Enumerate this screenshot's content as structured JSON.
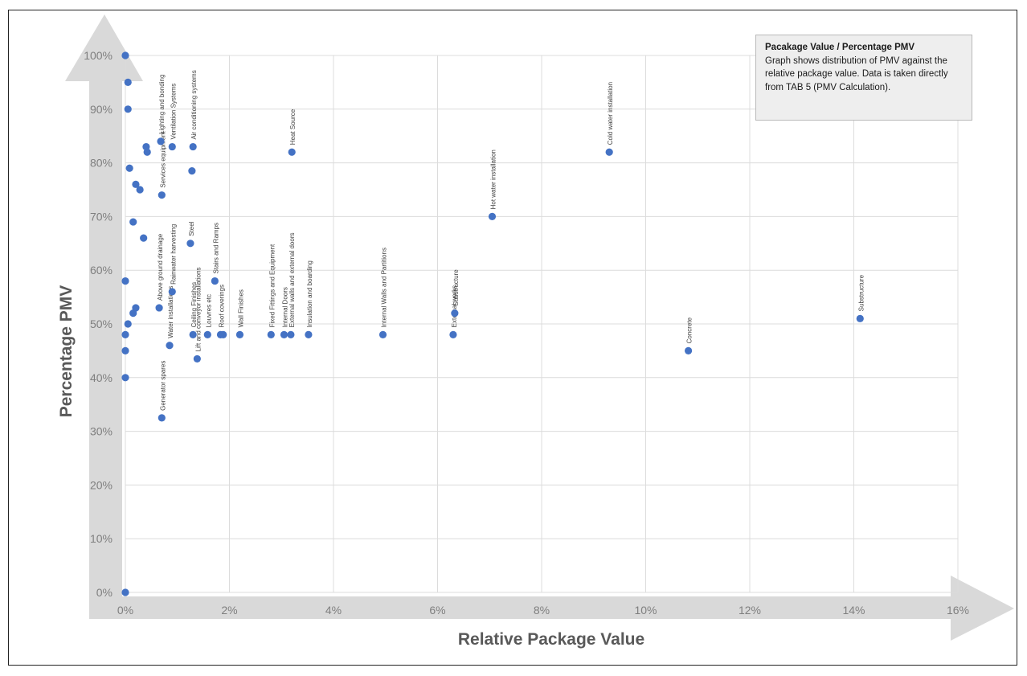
{
  "chart_data": {
    "type": "scatter",
    "xlabel": "Relative Package Value",
    "ylabel": "Percentage PMV",
    "x_unit": "%",
    "y_unit": "%",
    "xlim": [
      0,
      16
    ],
    "ylim": [
      0,
      100
    ],
    "x_ticks": [
      "0%",
      "2%",
      "4%",
      "6%",
      "8%",
      "10%",
      "12%",
      "14%",
      "16%"
    ],
    "y_ticks": [
      "0%",
      "10%",
      "20%",
      "30%",
      "40%",
      "50%",
      "60%",
      "70%",
      "80%",
      "90%",
      "100%"
    ],
    "grid": true,
    "marker_color": "#4472c4",
    "axis_arrow_color": "#d9d9d9",
    "note": {
      "title": "Pacakage Value / Percentage PMV",
      "body": "Graph shows distribution of PMV against the relative package value. Data is taken directly from TAB 5 (PMV Calculation)."
    },
    "points": [
      {
        "x": 0.0,
        "y": 100,
        "label": ""
      },
      {
        "x": 0.05,
        "y": 95,
        "label": ""
      },
      {
        "x": 0.05,
        "y": 90,
        "label": ""
      },
      {
        "x": 0.08,
        "y": 79,
        "label": ""
      },
      {
        "x": 0.15,
        "y": 69,
        "label": ""
      },
      {
        "x": 0.2,
        "y": 76,
        "label": ""
      },
      {
        "x": 0.28,
        "y": 75,
        "label": ""
      },
      {
        "x": 0.35,
        "y": 66,
        "label": ""
      },
      {
        "x": 0.0,
        "y": 58,
        "label": ""
      },
      {
        "x": 0.15,
        "y": 52,
        "label": ""
      },
      {
        "x": 0.2,
        "y": 53,
        "label": ""
      },
      {
        "x": 0.05,
        "y": 50,
        "label": ""
      },
      {
        "x": 0.0,
        "y": 48,
        "label": ""
      },
      {
        "x": 0.0,
        "y": 45,
        "label": ""
      },
      {
        "x": 0.0,
        "y": 40,
        "label": ""
      },
      {
        "x": 0.0,
        "y": 0,
        "label": ""
      },
      {
        "x": 0.4,
        "y": 83,
        "label": ""
      },
      {
        "x": 0.42,
        "y": 82,
        "label": ""
      },
      {
        "x": 0.68,
        "y": 84,
        "label": "Lighting and bonding"
      },
      {
        "x": 0.9,
        "y": 83,
        "label": "Ventilation Systems"
      },
      {
        "x": 0.7,
        "y": 74,
        "label": "Services equipment"
      },
      {
        "x": 0.65,
        "y": 53,
        "label": "Above ground drainage"
      },
      {
        "x": 0.9,
        "y": 56,
        "label": "Rainwater harvesting"
      },
      {
        "x": 0.85,
        "y": 46,
        "label": "Water installations"
      },
      {
        "x": 0.7,
        "y": 32.5,
        "label": "Generator spares"
      },
      {
        "x": 1.3,
        "y": 83,
        "label": "Air conditioning systems"
      },
      {
        "x": 1.28,
        "y": 78.5,
        "label": ""
      },
      {
        "x": 1.25,
        "y": 65,
        "label": "Steel"
      },
      {
        "x": 1.3,
        "y": 48,
        "label": "Ceiling Finishes"
      },
      {
        "x": 1.38,
        "y": 43.5,
        "label": "Lift and conveyor installations"
      },
      {
        "x": 1.58,
        "y": 48,
        "label": "Louvres etc"
      },
      {
        "x": 1.72,
        "y": 58,
        "label": "Stairs and Ramps"
      },
      {
        "x": 1.83,
        "y": 48,
        "label": "Roof coverings"
      },
      {
        "x": 1.88,
        "y": 48,
        "label": ""
      },
      {
        "x": 2.2,
        "y": 48,
        "label": "Wall Finishes"
      },
      {
        "x": 2.8,
        "y": 48,
        "label": "Fixed Fittings and Equipment"
      },
      {
        "x": 3.05,
        "y": 48,
        "label": "Internal Doors"
      },
      {
        "x": 3.18,
        "y": 48,
        "label": "External walls and external doors"
      },
      {
        "x": 3.2,
        "y": 82,
        "label": "Heat Source"
      },
      {
        "x": 3.52,
        "y": 48,
        "label": "Insulation and boarding"
      },
      {
        "x": 4.95,
        "y": 48,
        "label": "Internal Walls and Partitions"
      },
      {
        "x": 6.3,
        "y": 48,
        "label": "External works"
      },
      {
        "x": 6.33,
        "y": 52,
        "label": "Substructure"
      },
      {
        "x": 7.05,
        "y": 70,
        "label": "Hot water installation"
      },
      {
        "x": 9.3,
        "y": 82,
        "label": "Cold water installation"
      },
      {
        "x": 10.82,
        "y": 45,
        "label": "Concrete"
      },
      {
        "x": 14.12,
        "y": 51,
        "label": "Substructure"
      }
    ]
  }
}
